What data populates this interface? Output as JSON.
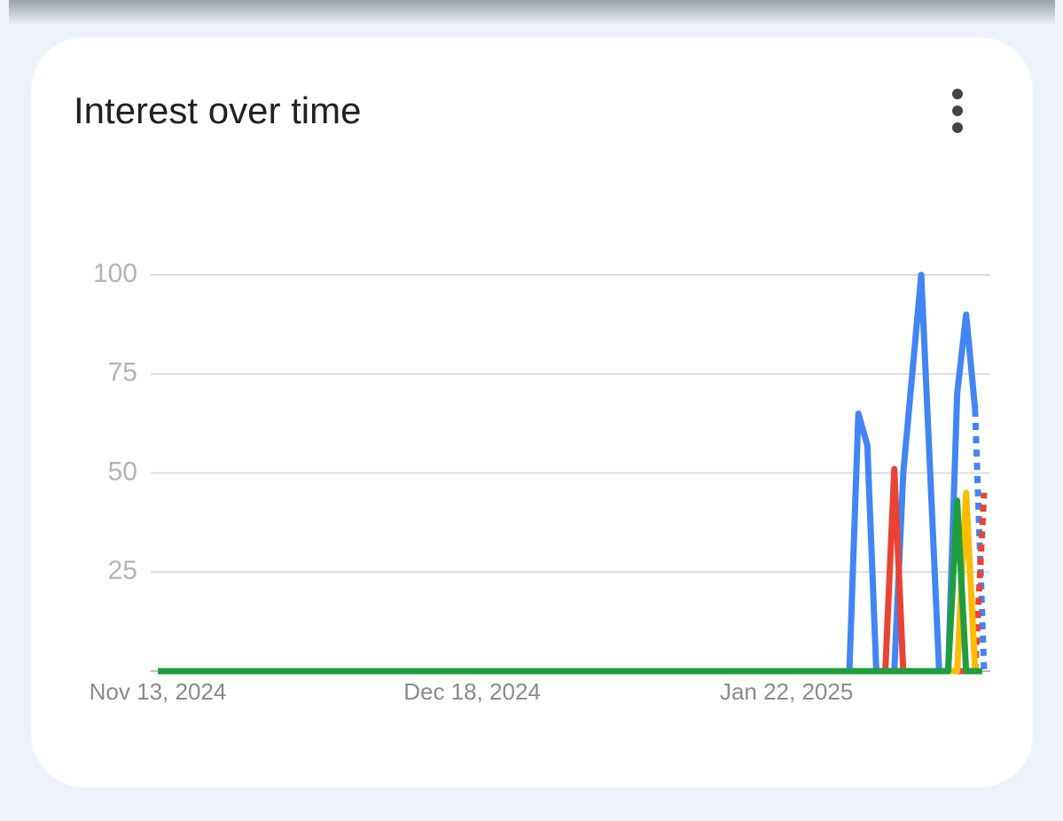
{
  "chart_data": {
    "type": "line",
    "title": "Interest over time",
    "categories": [
      "Nov 13, 2024",
      null,
      null,
      null,
      null,
      null,
      null,
      null,
      null,
      null,
      null,
      null,
      null,
      null,
      null,
      null,
      null,
      null,
      null,
      null,
      null,
      null,
      null,
      null,
      null,
      null,
      null,
      null,
      null,
      null,
      null,
      null,
      null,
      null,
      null,
      "Dec 18, 2024",
      null,
      null,
      null,
      null,
      null,
      null,
      null,
      null,
      null,
      null,
      null,
      null,
      null,
      null,
      null,
      null,
      null,
      null,
      null,
      null,
      null,
      null,
      null,
      null,
      null,
      null,
      null,
      null,
      null,
      null,
      null,
      null,
      null,
      null,
      "Jan 22, 2025",
      null,
      null,
      null,
      null,
      null,
      null,
      null,
      null,
      null,
      null,
      null,
      null,
      null,
      null,
      null,
      null,
      null,
      null,
      null,
      null,
      null,
      null
    ],
    "series": [
      {
        "color": "#4285f4",
        "values": [
          0,
          0,
          0,
          0,
          0,
          0,
          0,
          0,
          0,
          0,
          0,
          0,
          0,
          0,
          0,
          0,
          0,
          0,
          0,
          0,
          0,
          0,
          0,
          0,
          0,
          0,
          0,
          0,
          0,
          0,
          0,
          0,
          0,
          0,
          0,
          0,
          0,
          0,
          0,
          0,
          0,
          0,
          0,
          0,
          0,
          0,
          0,
          0,
          0,
          0,
          0,
          0,
          0,
          0,
          0,
          0,
          0,
          0,
          0,
          0,
          0,
          0,
          0,
          0,
          0,
          0,
          0,
          0,
          0,
          0,
          0,
          0,
          0,
          0,
          0,
          0,
          0,
          0,
          65,
          57,
          0,
          0,
          0,
          50,
          75,
          100,
          50,
          0,
          0,
          70,
          90,
          66,
          0
        ]
      },
      {
        "color": "#ea4335",
        "values": [
          0,
          0,
          0,
          0,
          0,
          0,
          0,
          0,
          0,
          0,
          0,
          0,
          0,
          0,
          0,
          0,
          0,
          0,
          0,
          0,
          0,
          0,
          0,
          0,
          0,
          0,
          0,
          0,
          0,
          0,
          0,
          0,
          0,
          0,
          0,
          0,
          0,
          0,
          0,
          0,
          0,
          0,
          0,
          0,
          0,
          0,
          0,
          0,
          0,
          0,
          0,
          0,
          0,
          0,
          0,
          0,
          0,
          0,
          0,
          0,
          0,
          0,
          0,
          0,
          0,
          0,
          0,
          0,
          0,
          0,
          0,
          0,
          0,
          0,
          0,
          0,
          0,
          0,
          0,
          0,
          0,
          0,
          51,
          0,
          0,
          0,
          0,
          0,
          0,
          0,
          0,
          0,
          45
        ]
      },
      {
        "color": "#fbbc04",
        "values": [
          0,
          0,
          0,
          0,
          0,
          0,
          0,
          0,
          0,
          0,
          0,
          0,
          0,
          0,
          0,
          0,
          0,
          0,
          0,
          0,
          0,
          0,
          0,
          0,
          0,
          0,
          0,
          0,
          0,
          0,
          0,
          0,
          0,
          0,
          0,
          0,
          0,
          0,
          0,
          0,
          0,
          0,
          0,
          0,
          0,
          0,
          0,
          0,
          0,
          0,
          0,
          0,
          0,
          0,
          0,
          0,
          0,
          0,
          0,
          0,
          0,
          0,
          0,
          0,
          0,
          0,
          0,
          0,
          0,
          0,
          0,
          0,
          0,
          0,
          0,
          0,
          0,
          0,
          0,
          0,
          0,
          0,
          0,
          0,
          0,
          0,
          0,
          0,
          0,
          0,
          45,
          0,
          0
        ]
      },
      {
        "color": "#1e9e3e",
        "values": [
          0,
          0,
          0,
          0,
          0,
          0,
          0,
          0,
          0,
          0,
          0,
          0,
          0,
          0,
          0,
          0,
          0,
          0,
          0,
          0,
          0,
          0,
          0,
          0,
          0,
          0,
          0,
          0,
          0,
          0,
          0,
          0,
          0,
          0,
          0,
          0,
          0,
          0,
          0,
          0,
          0,
          0,
          0,
          0,
          0,
          0,
          0,
          0,
          0,
          0,
          0,
          0,
          0,
          0,
          0,
          0,
          0,
          0,
          0,
          0,
          0,
          0,
          0,
          0,
          0,
          0,
          0,
          0,
          0,
          0,
          0,
          0,
          0,
          0,
          0,
          0,
          0,
          0,
          0,
          0,
          0,
          0,
          0,
          0,
          0,
          0,
          0,
          0,
          0,
          43,
          0,
          0,
          0
        ]
      }
    ],
    "ylim": [
      0,
      100
    ],
    "yticks": [
      25,
      50,
      75,
      100
    ],
    "grid": true
  }
}
